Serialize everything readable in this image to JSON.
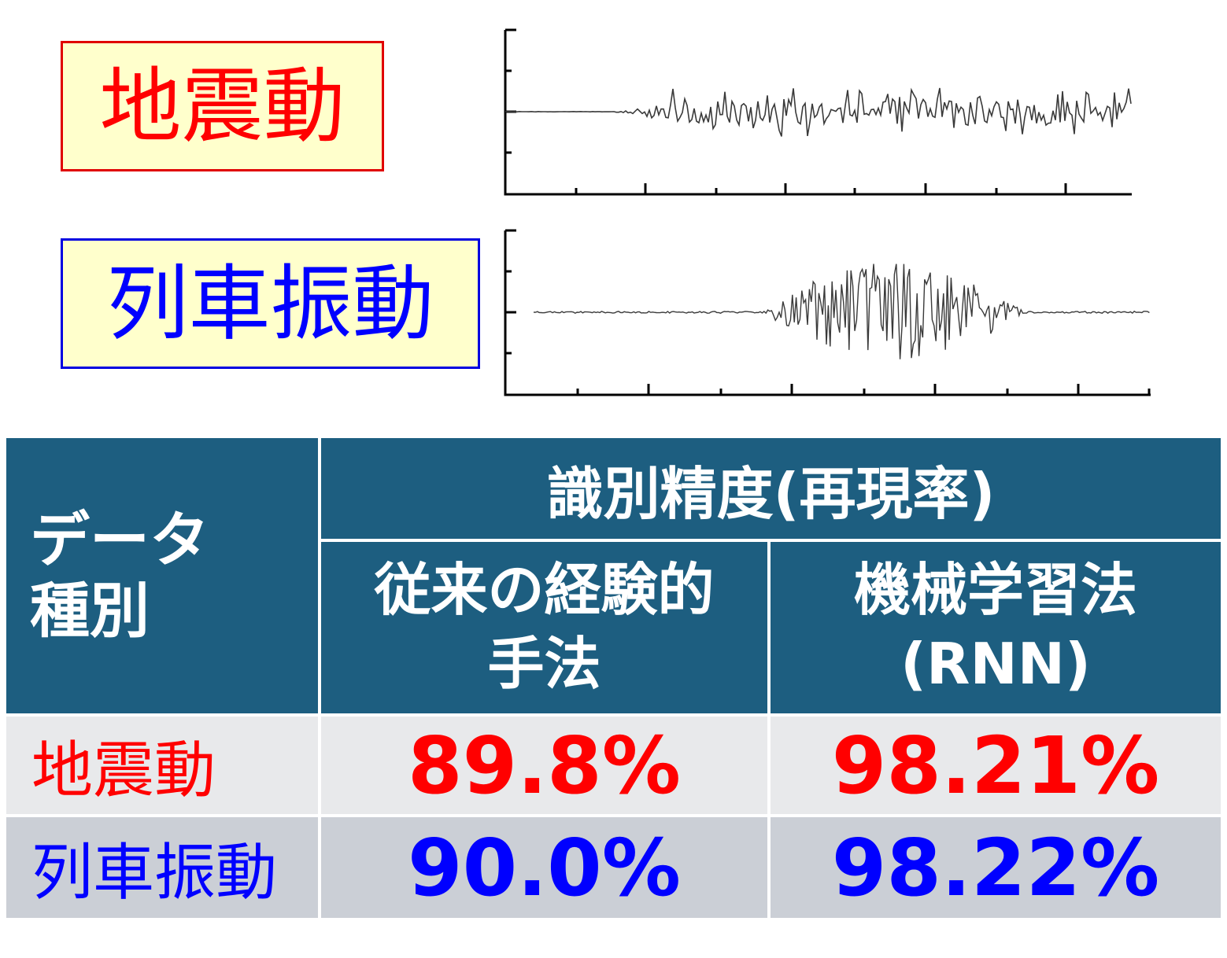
{
  "labels": {
    "earthquake": "地震動",
    "train": "列車振動"
  },
  "table": {
    "header_type": [
      "データ",
      "種別"
    ],
    "header_group": "識別精度(再現率)",
    "header_conventional": [
      "従来の経験的",
      "手法"
    ],
    "header_ml": [
      "機械学習法",
      "(RNN)"
    ],
    "rows": [
      {
        "type": "地震動",
        "conventional": "89.8%",
        "ml": "98.21%"
      },
      {
        "type": "列車振動",
        "conventional": "90.0%",
        "ml": "98.22%"
      }
    ]
  },
  "colors": {
    "earthquake": "#ff0000",
    "train": "#0000ff",
    "header_bg": "#1d5e80",
    "label_bg": "#ffffcc"
  }
}
